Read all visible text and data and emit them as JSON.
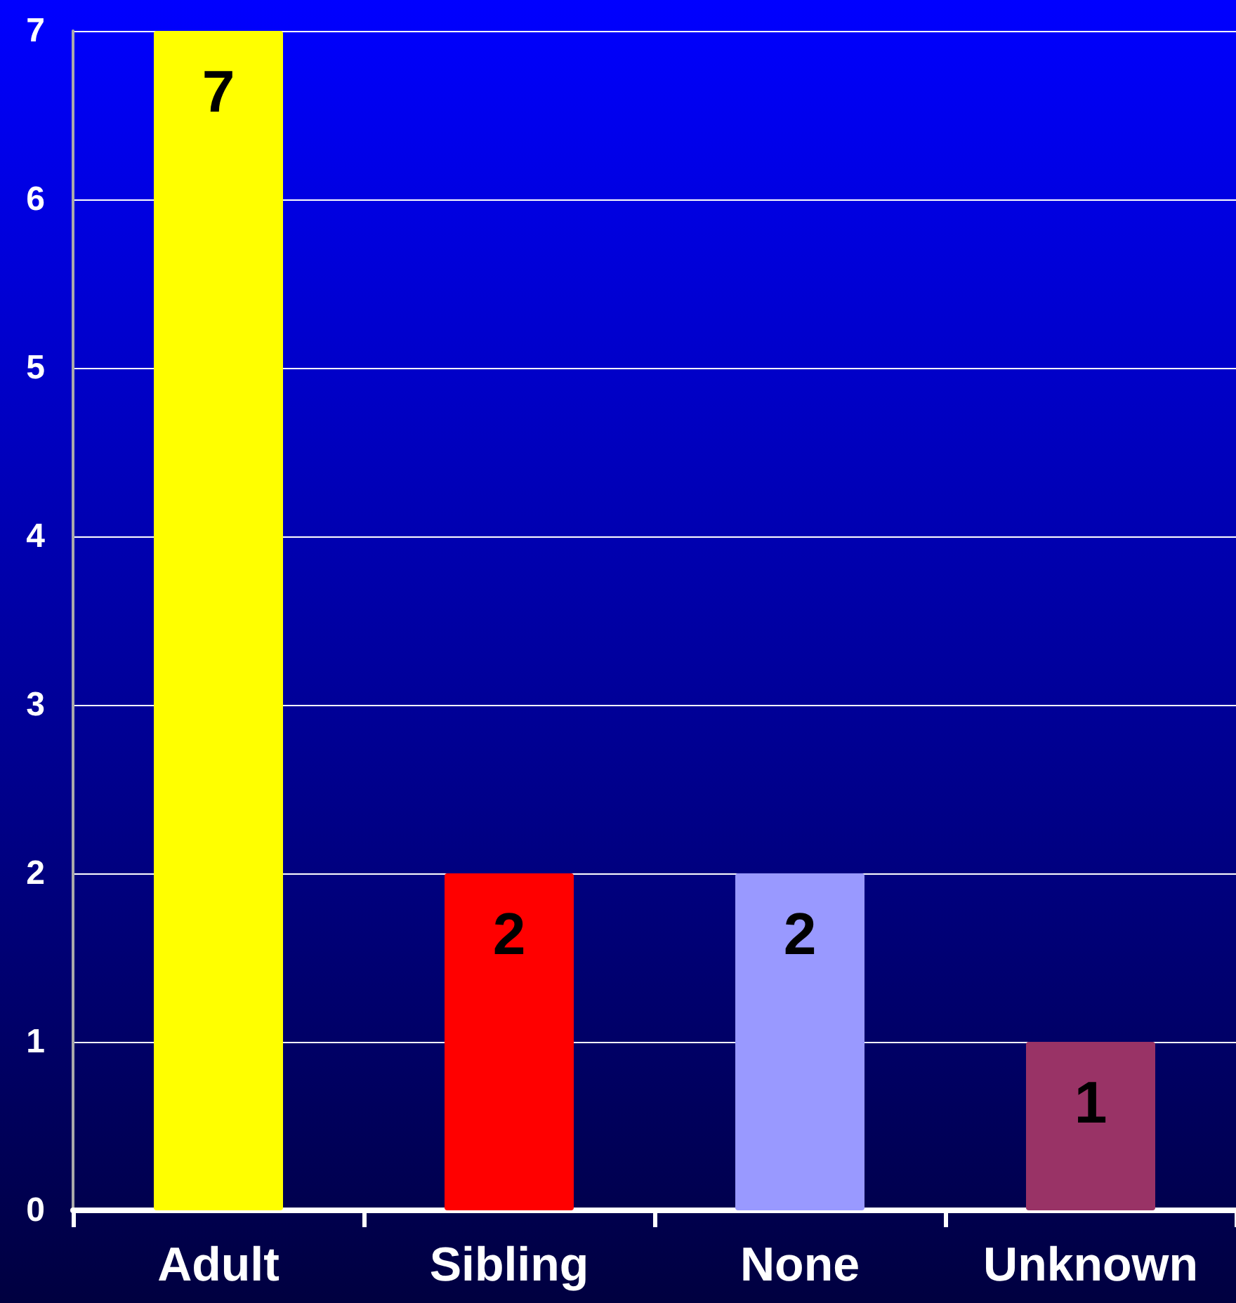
{
  "chart_data": {
    "type": "bar",
    "categories": [
      "Adult",
      "Sibling",
      "None",
      "Unknown"
    ],
    "values": [
      7,
      2,
      2,
      1
    ],
    "colors": [
      "#ffff00",
      "#ff0000",
      "#9999ff",
      "#993366"
    ],
    "ylim": [
      0,
      7
    ],
    "yticks": [
      0,
      1,
      2,
      3,
      4,
      5,
      6,
      7
    ],
    "grid": "y",
    "data_labels": true
  }
}
